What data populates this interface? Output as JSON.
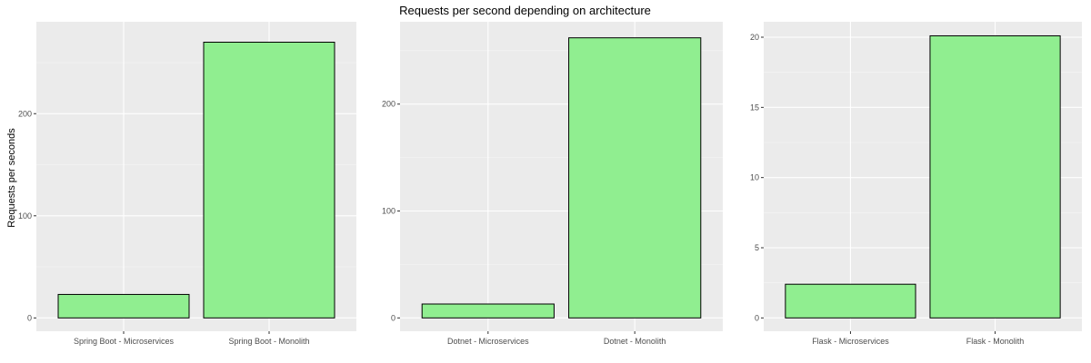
{
  "figure": {
    "title": "Requests per second depending on architecture",
    "ylabel": "Requests per seconds"
  },
  "colors": {
    "panel_background": "#ebebeb",
    "grid_major": "#ffffff",
    "grid_minor": "#f5f5f5",
    "bar_fill": "#90ee90",
    "bar_stroke": "#000000",
    "tick_text": "#4d4d4d"
  },
  "chart_data": [
    {
      "type": "bar",
      "categories": [
        "Spring Boot - Microservices",
        "Spring Boot - Monolith"
      ],
      "values": [
        23,
        270
      ],
      "ylim": [
        0,
        290
      ],
      "yticks": [
        0,
        100,
        200
      ],
      "grid": true
    },
    {
      "type": "bar",
      "categories": [
        "Dotnet - Microservices",
        "Dotnet - Monolith"
      ],
      "values": [
        13,
        262
      ],
      "ylim": [
        0,
        277
      ],
      "yticks": [
        0,
        100,
        200
      ],
      "grid": true
    },
    {
      "type": "bar",
      "categories": [
        "Flask - Microservices",
        "Flask - Monolith"
      ],
      "values": [
        2.4,
        20.1
      ],
      "ylim": [
        0,
        21.1
      ],
      "yticks": [
        0,
        5,
        10,
        15,
        20
      ],
      "grid": true
    }
  ]
}
